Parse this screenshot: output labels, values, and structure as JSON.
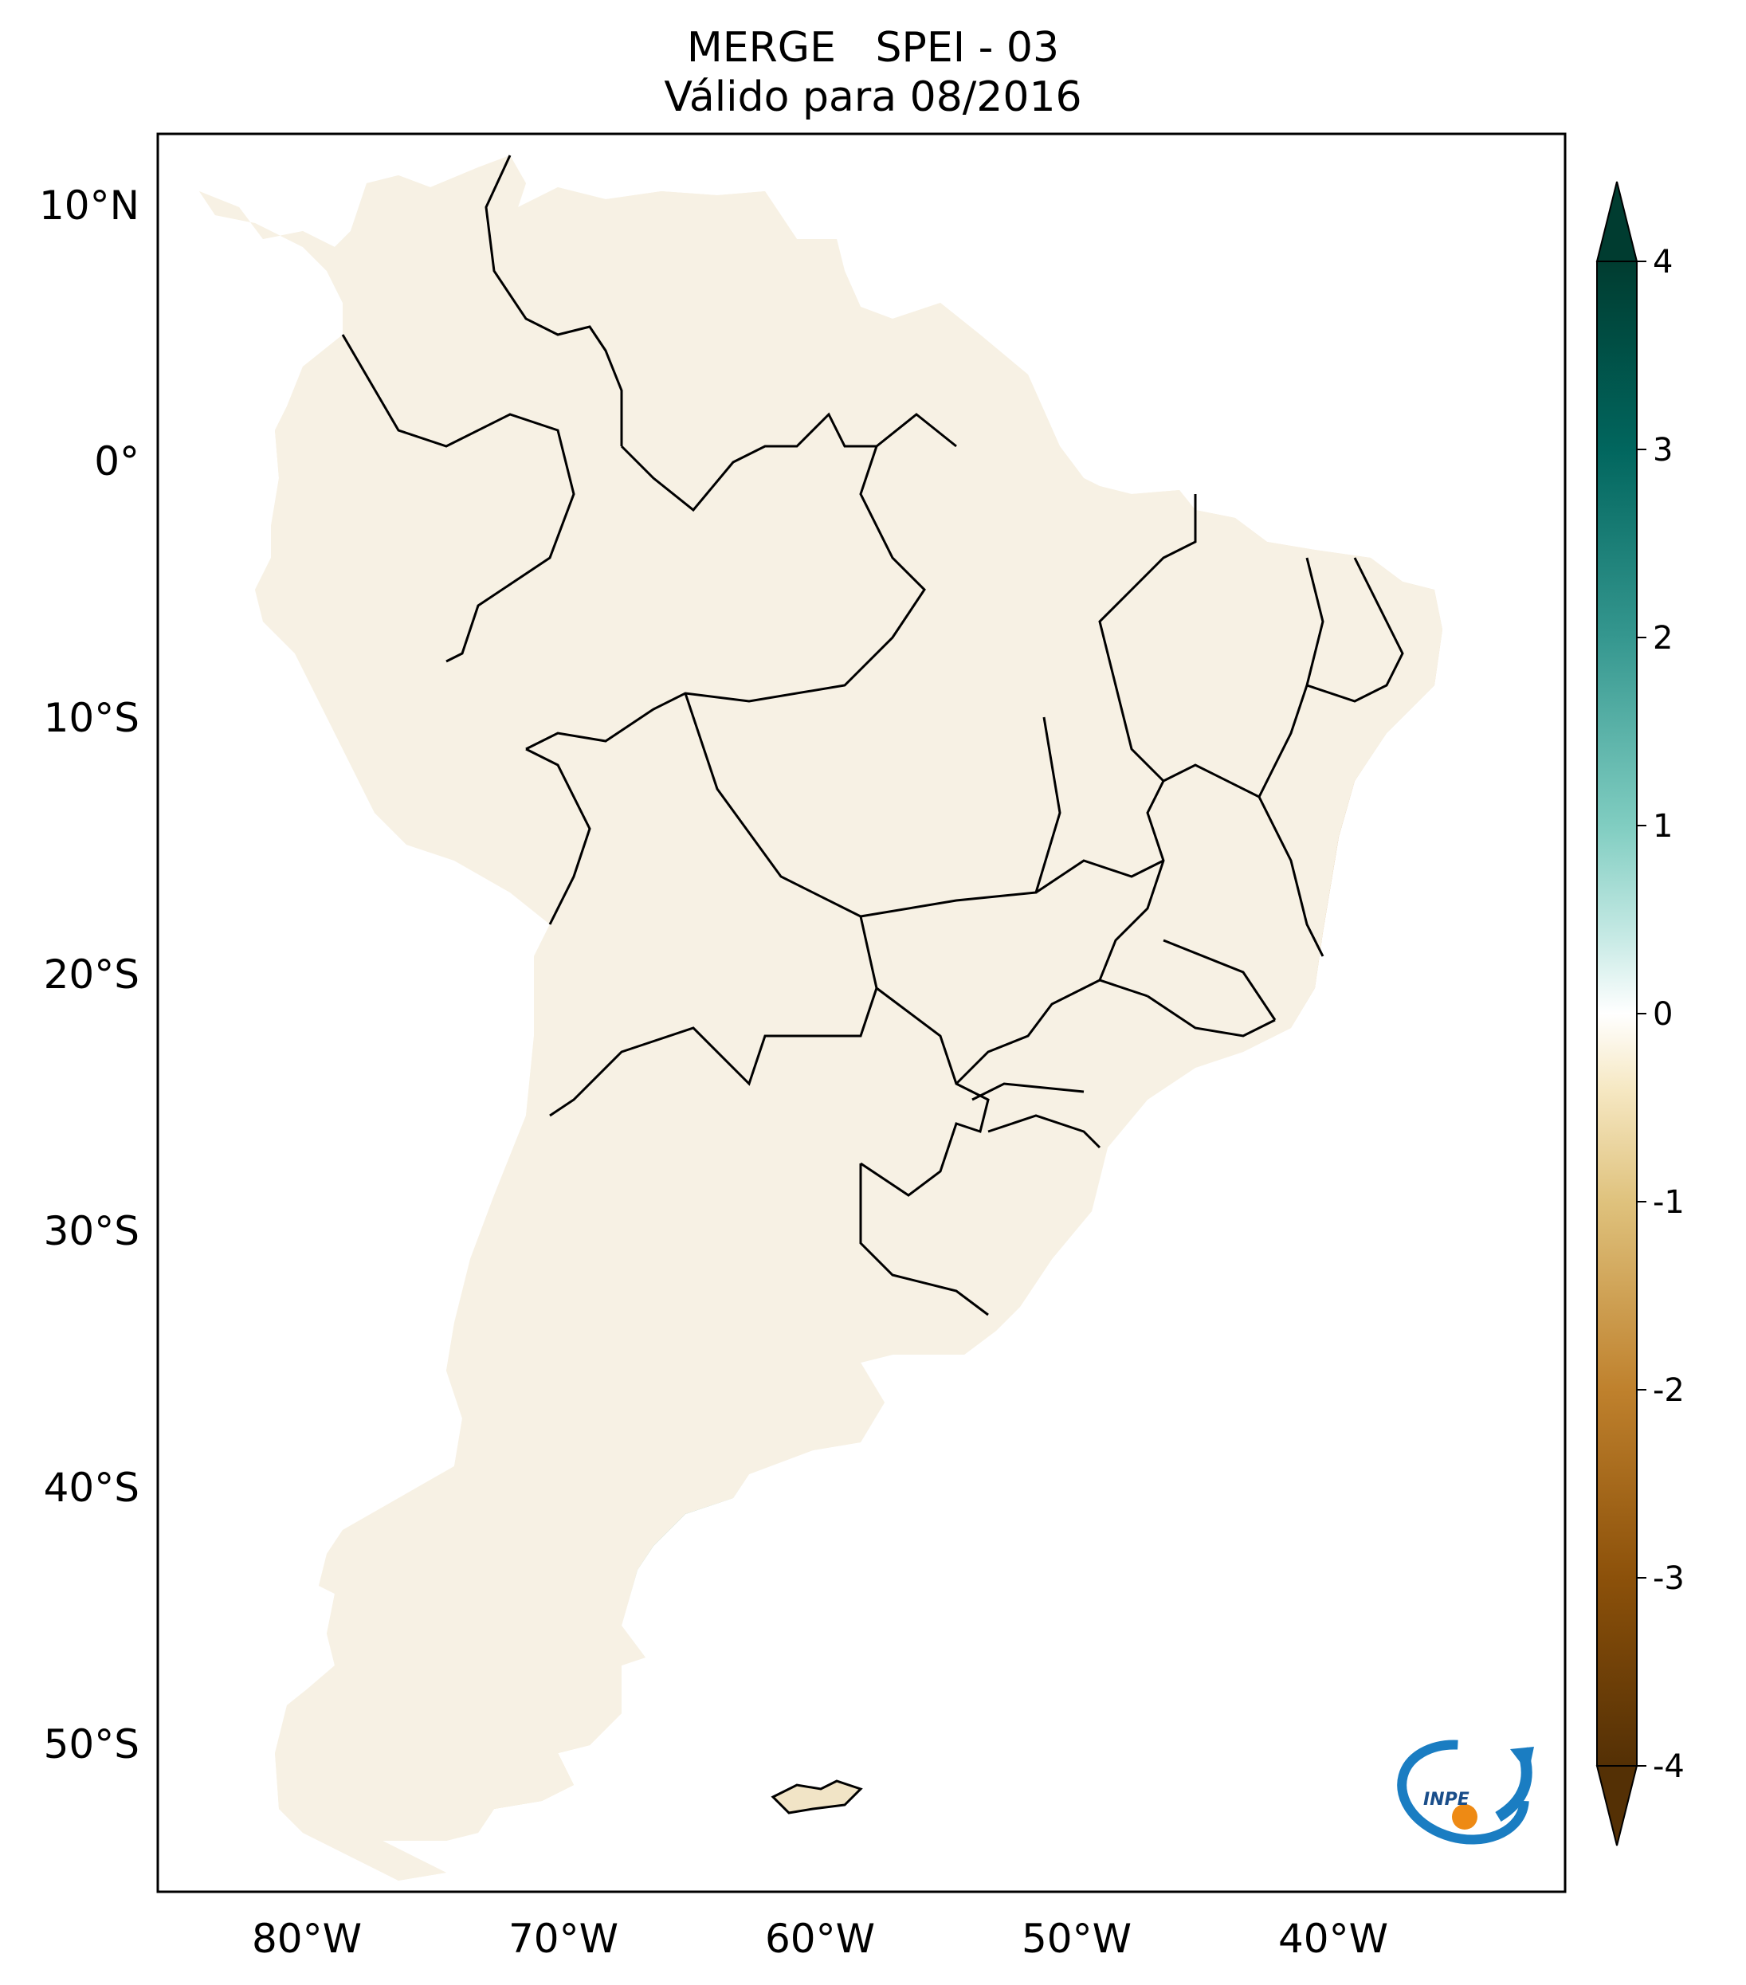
{
  "title": {
    "line1": "MERGE   SPEI - 03",
    "line2": "Válido para 08/2016"
  },
  "axes": {
    "lon_labels": [
      "80°W",
      "70°W",
      "60°W",
      "50°W",
      "40°W"
    ],
    "lat_labels": [
      "10°N",
      "0°",
      "10°S",
      "20°S",
      "30°S",
      "40°S",
      "50°S"
    ]
  },
  "colorbar": {
    "ticks": [
      "4",
      "3",
      "2",
      "1",
      "0",
      "-1",
      "-2",
      "-3",
      "-4"
    ],
    "range": [
      -4,
      4
    ],
    "extend": "both",
    "colors": {
      "neg4": "#543005",
      "neg3": "#8c510a",
      "neg2": "#bf812d",
      "neg1": "#dfc27d",
      "neg05": "#f6e8c3",
      "zero": "#ffffff",
      "pos05": "#c7eae5",
      "pos1": "#80cdc1",
      "pos2": "#35978f",
      "pos3": "#01665e",
      "pos4": "#003c30"
    }
  },
  "logo": {
    "text": "INPE",
    "icon": "inpe-logo"
  }
}
